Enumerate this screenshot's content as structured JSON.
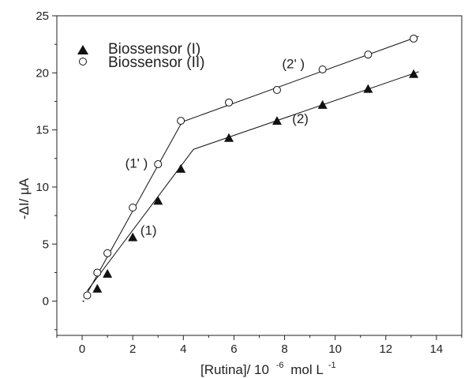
{
  "chart_data": {
    "type": "scatter",
    "xlabel": "[Rutina]/ 10",
    "xlabel_exp": "-6",
    "xlabel_unit": "mol L",
    "xlabel_unit_exp": "-1",
    "ylabel": "-ΔI/ µA",
    "xlim": [
      -1,
      15
    ],
    "ylim": [
      -3,
      25
    ],
    "x_ticks": [
      0,
      2,
      4,
      6,
      8,
      10,
      12,
      14
    ],
    "y_ticks": [
      0,
      5,
      10,
      15,
      20,
      25
    ],
    "legend": {
      "position": "top-left",
      "entries": [
        {
          "label": "Biossensor (I)",
          "marker": "triangle-filled"
        },
        {
          "label": "Biossensor (II)",
          "marker": "circle-open"
        }
      ]
    },
    "series": [
      {
        "name": "Biossensor (I)",
        "marker": "triangle-filled",
        "color": "#111111",
        "x": [
          0.6,
          1.0,
          2.0,
          3.0,
          3.9,
          5.8,
          7.7,
          9.5,
          11.3,
          13.1
        ],
        "y": [
          1.1,
          2.4,
          5.6,
          8.8,
          11.6,
          14.3,
          15.8,
          17.2,
          18.6,
          19.9
        ]
      },
      {
        "name": "Biossensor (II)",
        "marker": "circle-open",
        "color": "#111111",
        "x": [
          0.2,
          0.6,
          1.0,
          2.0,
          3.0,
          3.9,
          5.8,
          7.7,
          9.5,
          11.3,
          13.1
        ],
        "y": [
          0.5,
          2.5,
          4.2,
          8.2,
          12.0,
          15.8,
          17.4,
          18.5,
          20.3,
          21.6,
          23.0
        ]
      }
    ],
    "fit_lines": [
      {
        "x": [
          0.2,
          4.4
        ],
        "y": [
          0.9,
          13.3
        ]
      },
      {
        "x": [
          4.4,
          13.3
        ],
        "y": [
          13.3,
          20.1
        ]
      },
      {
        "x": [
          0.1,
          3.95
        ],
        "y": [
          0.3,
          15.7
        ]
      },
      {
        "x": [
          3.95,
          13.3
        ],
        "y": [
          15.7,
          23.2
        ]
      }
    ],
    "annotations": [
      {
        "text": "(1)",
        "x": 2.3,
        "y": 5.8
      },
      {
        "text": "(1' )",
        "x": 1.7,
        "y": 11.7
      },
      {
        "text": "(2)",
        "x": 8.3,
        "y": 15.6
      },
      {
        "text": "(2' )",
        "x": 7.9,
        "y": 20.4
      }
    ],
    "stray_point": {
      "x": 0.05,
      "y": 0
    }
  }
}
